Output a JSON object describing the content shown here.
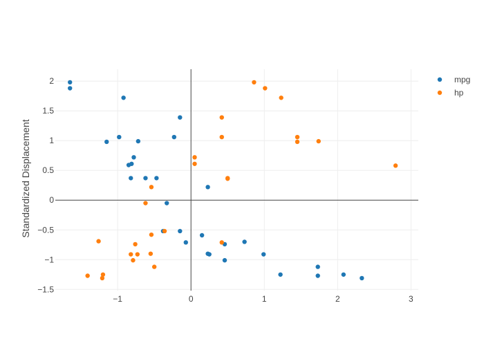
{
  "chart_data": {
    "type": "scatter",
    "title": "",
    "xlabel": "",
    "ylabel": "Standardized Displacement",
    "xlim": [
      -1.85,
      3.1
    ],
    "ylim": [
      -1.52,
      2.2
    ],
    "x_ticks": [
      -1,
      0,
      1,
      2,
      3
    ],
    "x_tick_labels": [
      "−1",
      "0",
      "1",
      "2",
      "3"
    ],
    "y_ticks": [
      -1.5,
      -1,
      -0.5,
      0,
      0.5,
      1,
      1.5,
      2
    ],
    "y_tick_labels": [
      "−1.5",
      "−1",
      "−0.5",
      "0",
      "0.5",
      "1",
      "1.5",
      "2"
    ],
    "grid": true,
    "zero_lines": true,
    "legend_position": "top-right",
    "series": [
      {
        "name": "mpg",
        "color": "#1f77b4",
        "points": [
          [
            -1.65,
            1.98
          ],
          [
            -1.65,
            1.88
          ],
          [
            -0.92,
            1.72
          ],
          [
            -0.15,
            1.39
          ],
          [
            -0.98,
            1.06
          ],
          [
            -0.23,
            1.06
          ],
          [
            -1.15,
            0.98
          ],
          [
            -0.72,
            0.99
          ],
          [
            -0.78,
            0.72
          ],
          [
            -0.85,
            0.59
          ],
          [
            -0.81,
            0.61
          ],
          [
            -0.82,
            0.37
          ],
          [
            -0.62,
            0.37
          ],
          [
            -0.47,
            0.37
          ],
          [
            0.23,
            0.22
          ],
          [
            -0.33,
            -0.05
          ],
          [
            -0.38,
            -0.52
          ],
          [
            -0.15,
            -0.52
          ],
          [
            -0.07,
            -0.71
          ],
          [
            0.15,
            -0.59
          ],
          [
            0.46,
            -0.74
          ],
          [
            0.73,
            -0.7
          ],
          [
            0.23,
            -0.9
          ],
          [
            0.25,
            -0.91
          ],
          [
            0.46,
            -1.01
          ],
          [
            0.99,
            -0.91
          ],
          [
            1.22,
            -1.25
          ],
          [
            1.73,
            -1.12
          ],
          [
            1.73,
            -1.27
          ],
          [
            2.08,
            -1.25
          ],
          [
            2.33,
            -1.31
          ]
        ]
      },
      {
        "name": "hp",
        "color": "#ff7f0e",
        "points": [
          [
            0.86,
            1.98
          ],
          [
            1.01,
            1.88
          ],
          [
            1.23,
            1.72
          ],
          [
            0.42,
            1.39
          ],
          [
            0.42,
            1.06
          ],
          [
            1.45,
            1.06
          ],
          [
            1.45,
            0.98
          ],
          [
            1.74,
            0.99
          ],
          [
            2.79,
            0.58
          ],
          [
            0.05,
            0.72
          ],
          [
            0.05,
            0.61
          ],
          [
            0.5,
            0.37
          ],
          [
            0.5,
            0.36
          ],
          [
            -0.54,
            0.22
          ],
          [
            -0.62,
            -0.05
          ],
          [
            -0.36,
            -0.52
          ],
          [
            -0.54,
            -0.58
          ],
          [
            -1.26,
            -0.69
          ],
          [
            0.42,
            -0.71
          ],
          [
            -0.76,
            -0.74
          ],
          [
            -0.82,
            -0.91
          ],
          [
            -0.73,
            -0.91
          ],
          [
            -0.55,
            -0.9
          ],
          [
            -0.79,
            -1.01
          ],
          [
            -0.5,
            -1.12
          ],
          [
            -1.41,
            -1.27
          ],
          [
            -1.2,
            -1.25
          ],
          [
            -1.21,
            -1.31
          ]
        ]
      }
    ]
  }
}
